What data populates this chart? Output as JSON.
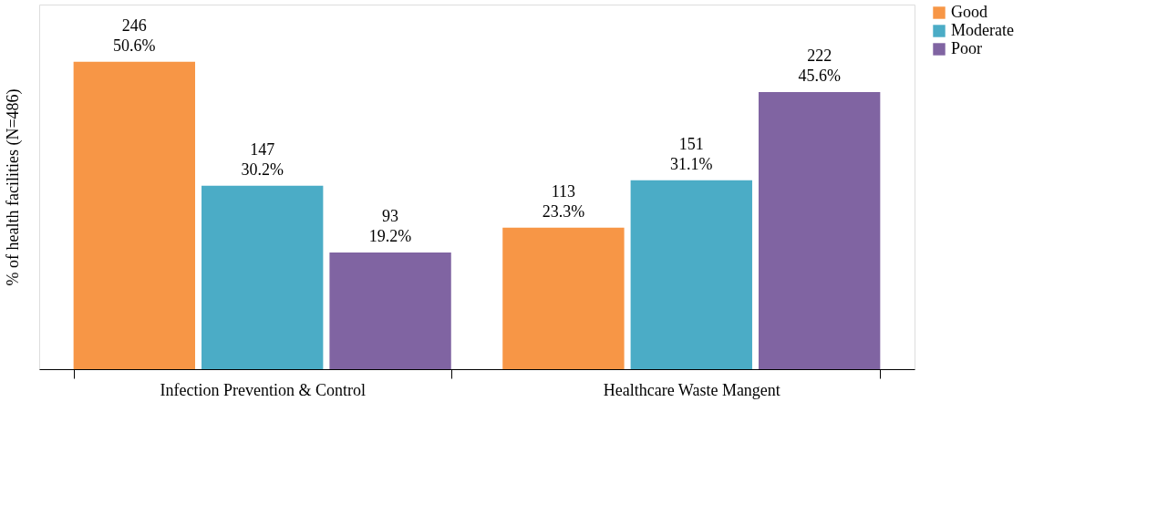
{
  "chart_data": {
    "type": "bar",
    "ylabel": "% of health facilities (N=486)",
    "categories": [
      "Infection Prevention & Control",
      "Healthcare Waste Mangent"
    ],
    "series": [
      {
        "name": "Good",
        "color": "#f79646",
        "values": [
          50.6,
          23.3
        ],
        "value_labels": [
          "246\n50.6%",
          "113\n23.3%"
        ]
      },
      {
        "name": "Moderate",
        "color": "#4bacc6",
        "values": [
          30.2,
          31.1
        ],
        "value_labels": [
          "147\n30.2%",
          "151\n31.1%"
        ]
      },
      {
        "name": "Poor",
        "color": "#8064a2",
        "values": [
          19.2,
          45.6
        ],
        "value_labels": [
          "93\n19.2%",
          "222\n45.6%"
        ]
      }
    ],
    "ylim": [
      0,
      60
    ],
    "tick_labels": "x",
    "grid": false,
    "legend": "right"
  }
}
